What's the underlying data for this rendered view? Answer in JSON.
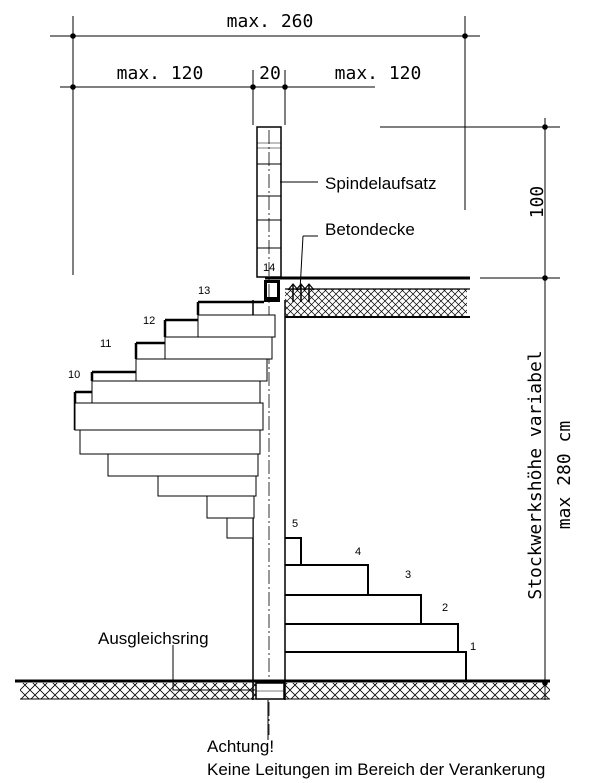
{
  "dimensions": {
    "total_width": "max. 260",
    "left_width": "max. 120",
    "spindle_width": "20",
    "right_width": "max. 120",
    "top_height": "100",
    "story_height_line1": "Stockwerkshöhe variabel",
    "story_height_line2": "max 280 cm"
  },
  "labels": {
    "spindle_top": "Spindelaufsatz",
    "concrete_ceiling": "Betondecke",
    "leveling_ring": "Ausgleichsring",
    "warning_title": "Achtung!",
    "warning_text": "Keine Leitungen im Bereich der Verankerung"
  },
  "step_numbers": [
    "1",
    "2",
    "3",
    "4",
    "5",
    "10",
    "11",
    "12",
    "13",
    "14"
  ]
}
